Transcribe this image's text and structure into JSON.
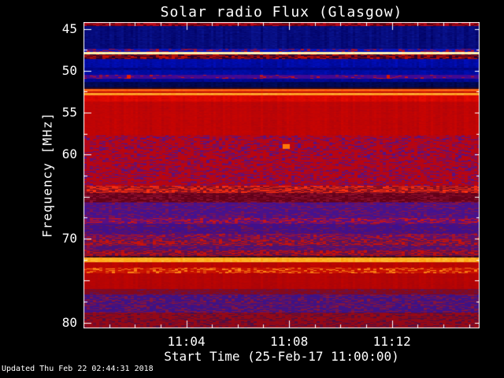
{
  "title": "Solar radio Flux (Glasgow)",
  "footer": {
    "updated": "Updated Thu Feb 22 02:44:31 2018"
  },
  "chart_data": {
    "type": "heatmap",
    "title": "Solar radio Flux (Glasgow)",
    "xlabel": "Start Time (25-Feb-17 11:00:00)",
    "ylabel": "Frequency [MHz]",
    "x_range_minutes": [
      0,
      15.41
    ],
    "y_range_mhz": [
      44.2,
      80.7
    ],
    "x_ticks": [
      {
        "minute": 4,
        "label": "11:04"
      },
      {
        "minute": 8,
        "label": "11:08"
      },
      {
        "minute": 12,
        "label": "11:12"
      }
    ],
    "x_minor_tick_every_minutes": 1,
    "y_ticks": [
      {
        "f": 45,
        "label": "45"
      },
      {
        "f": 50,
        "label": "50"
      },
      {
        "f": 55,
        "label": "55"
      },
      {
        "f": 60,
        "label": "60"
      },
      {
        "f": 65,
        "label": ""
      },
      {
        "f": 70,
        "label": "70"
      },
      {
        "f": 75,
        "label": ""
      },
      {
        "f": 80,
        "label": "80"
      }
    ],
    "y_minor_ticks": [
      47.5,
      52.5,
      57.5,
      62.5,
      67.5,
      72.5,
      77.5
    ],
    "colors": {
      "background": "#000000",
      "axis": "#ffffff",
      "text": "#ffffff"
    },
    "bands": [
      {
        "f0": 44.2,
        "f1": 44.67,
        "style": "dashes",
        "base": "#58000c",
        "alt": "#c00818",
        "p": 0.6
      },
      {
        "f0": 44.67,
        "f1": 47.39,
        "style": "columns",
        "base": "#000060",
        "alt": "#1428c0",
        "a": 0.45
      },
      {
        "f0": 47.39,
        "f1": 47.77,
        "style": "dashes",
        "base": "#0014c4",
        "alt": "#b81020",
        "p": 0.3
      },
      {
        "f0": 47.77,
        "f1": 48.09,
        "style": "line",
        "base": "#ffee90",
        "alt": "#fffff0"
      },
      {
        "f0": 48.09,
        "f1": 48.61,
        "style": "dashes",
        "base": "#200030",
        "alt": "#c81000",
        "p": 0.55
      },
      {
        "f0": 48.61,
        "f1": 49.64,
        "style": "columns",
        "base": "#0010c8",
        "alt": "#000058",
        "a": 0.5
      },
      {
        "f0": 49.64,
        "f1": 49.92,
        "style": "columns",
        "base": "#000074",
        "alt": "#0010a8",
        "a": 0.5
      },
      {
        "f0": 49.92,
        "f1": 50.48,
        "style": "columns",
        "base": "#0010c0",
        "alt": "#000060",
        "a": 0.5
      },
      {
        "f0": 50.48,
        "f1": 50.95,
        "style": "dashes",
        "base": "#3408a0",
        "alt": "#c81414",
        "p": 0.12
      },
      {
        "f0": 50.95,
        "f1": 51.33,
        "style": "columns",
        "base": "#000cb0",
        "alt": "#000050",
        "a": 0.5
      },
      {
        "f0": 51.33,
        "f1": 51.99,
        "style": "columns",
        "base": "#000038",
        "alt": "#0020a0",
        "a": 0.35
      },
      {
        "f0": 51.99,
        "f1": 52.17,
        "style": "columns",
        "base": "#1c0414",
        "alt": "#3c0830",
        "a": 0.5
      },
      {
        "f0": 52.17,
        "f1": 52.45,
        "style": "line",
        "base": "#f85808",
        "alt": "#ff7820"
      },
      {
        "f0": 52.45,
        "f1": 52.69,
        "style": "columns",
        "base": "#d41000",
        "alt": "#a00800",
        "a": 0.5
      },
      {
        "f0": 52.69,
        "f1": 52.92,
        "style": "line",
        "base": "#ff9418",
        "alt": "#ffb840"
      },
      {
        "f0": 52.92,
        "f1": 53.67,
        "style": "columns",
        "base": "#ee0c00",
        "alt": "#b00000",
        "a": 0.5
      },
      {
        "f0": 53.67,
        "f1": 57.7,
        "style": "columns",
        "base": "#d00400",
        "alt": "#9c0410",
        "a": 0.5
      },
      {
        "f0": 57.7,
        "f1": 63.71,
        "style": "speckle",
        "base": "#c00408",
        "alt": "#50148c",
        "p": 0.3
      },
      {
        "f0": 63.71,
        "f1": 64.55,
        "style": "dashes",
        "base": "#7c0c24",
        "alt": "#ff3010",
        "p": 0.5
      },
      {
        "f0": 64.55,
        "f1": 65.68,
        "style": "speckle",
        "base": "#600018",
        "alt": "#901030",
        "p": 0.35
      },
      {
        "f0": 65.68,
        "f1": 67.55,
        "style": "speckle",
        "base": "#401294",
        "alt": "#8c1240",
        "p": 0.3
      },
      {
        "f0": 67.55,
        "f1": 68.21,
        "style": "dashes",
        "base": "#4a1092",
        "alt": "#d01410",
        "p": 0.45
      },
      {
        "f0": 68.21,
        "f1": 69.43,
        "style": "speckle",
        "base": "#3c1090",
        "alt": "#7c1240",
        "p": 0.25
      },
      {
        "f0": 69.43,
        "f1": 70.08,
        "style": "dashes",
        "base": "#50107c",
        "alt": "#c01410",
        "p": 0.35
      },
      {
        "f0": 70.08,
        "f1": 70.83,
        "style": "dashes",
        "base": "#4c1468",
        "alt": "#cc1208",
        "p": 0.5
      },
      {
        "f0": 70.83,
        "f1": 71.4,
        "style": "speckle",
        "base": "#44127c",
        "alt": "#981038",
        "p": 0.3
      },
      {
        "f0": 71.4,
        "f1": 72.05,
        "style": "dashes",
        "base": "#581052",
        "alt": "#cc1008",
        "p": 0.5
      },
      {
        "f0": 72.05,
        "f1": 72.24,
        "style": "speckle",
        "base": "#2c041c",
        "alt": "#680820",
        "p": 0.3
      },
      {
        "f0": 72.24,
        "f1": 72.8,
        "style": "line",
        "base": "#ff9c08",
        "alt": "#ffd050"
      },
      {
        "f0": 72.8,
        "f1": 73.46,
        "style": "columns",
        "base": "#cc0600",
        "alt": "#900808",
        "a": 0.5
      },
      {
        "f0": 73.46,
        "f1": 74.11,
        "style": "dashes",
        "base": "#c40600",
        "alt": "#ff8814",
        "p": 0.35
      },
      {
        "f0": 74.11,
        "f1": 75.99,
        "style": "columns",
        "base": "#c40400",
        "alt": "#940410",
        "a": 0.5
      },
      {
        "f0": 75.99,
        "f1": 76.65,
        "style": "speckle",
        "base": "#880818",
        "alt": "#5c1458",
        "p": 0.25
      },
      {
        "f0": 76.65,
        "f1": 78.8,
        "style": "speckle",
        "base": "#38128c",
        "alt": "#8c1434",
        "p": 0.35
      },
      {
        "f0": 78.8,
        "f1": 80.85,
        "style": "speckle",
        "base": "#9c0812",
        "alt": "#481048",
        "p": 0.3
      }
    ],
    "features": [
      {
        "t_min": 1.75,
        "f_mhz": 50.7,
        "w": 5,
        "h": 5,
        "color": "#e82000"
      },
      {
        "t_min": 11.86,
        "f_mhz": 50.7,
        "w": 4,
        "h": 5,
        "color": "#d81800"
      },
      {
        "t_min": 7.9,
        "f_mhz": 59.05,
        "w": 9,
        "h": 6,
        "color": "#ff7808"
      }
    ]
  }
}
